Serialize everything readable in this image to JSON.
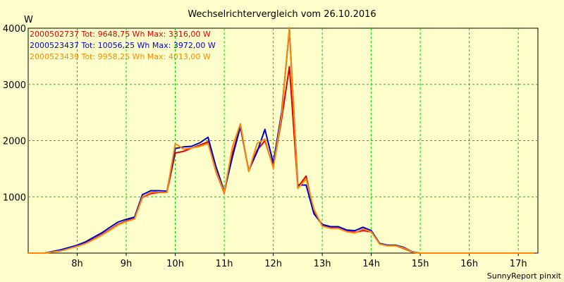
{
  "chart_data": {
    "type": "line",
    "title": "Wechselrichtervergleich vom 26.10.2016",
    "ylabel": "W",
    "xlabel": "",
    "footer": "SunnyReport pinxit",
    "ylim": [
      0,
      4000
    ],
    "xlim": [
      7.0,
      17.4
    ],
    "yticks": [
      1000,
      2000,
      3000,
      4000
    ],
    "xticks": [
      {
        "value": 8,
        "label": "8h"
      },
      {
        "value": 9,
        "label": "9h"
      },
      {
        "value": 10,
        "label": "10h"
      },
      {
        "value": 11,
        "label": "11h"
      },
      {
        "value": 12,
        "label": "12h"
      },
      {
        "value": 13,
        "label": "13h"
      },
      {
        "value": 14,
        "label": "14h"
      },
      {
        "value": 15,
        "label": "15h"
      },
      {
        "value": 16,
        "label": "16h"
      },
      {
        "value": 17,
        "label": "17h"
      }
    ],
    "grid": true,
    "legend_position": "top-left",
    "x": [
      7.0,
      7.33,
      7.67,
      8.0,
      8.17,
      8.33,
      8.5,
      8.67,
      8.83,
      9.0,
      9.17,
      9.33,
      9.5,
      9.67,
      9.83,
      10.0,
      10.17,
      10.33,
      10.5,
      10.67,
      10.83,
      11.0,
      11.17,
      11.33,
      11.5,
      11.67,
      11.83,
      12.0,
      12.17,
      12.33,
      12.5,
      12.67,
      12.83,
      13.0,
      13.17,
      13.33,
      13.5,
      13.67,
      13.83,
      14.0,
      14.17,
      14.33,
      14.5,
      14.67,
      14.83,
      15.0,
      15.17,
      15.33,
      15.5,
      15.67,
      15.83,
      16.0,
      16.17,
      16.33,
      16.5,
      16.67,
      16.83,
      17.0,
      17.17,
      17.33
    ],
    "series": [
      {
        "name": "2000502737",
        "legend": "2000502737 Tot: 9648,75 Wh Max: 3316,00 W",
        "color": "#e00000",
        "values": [
          0,
          0,
          50,
          130,
          180,
          250,
          330,
          420,
          510,
          570,
          620,
          990,
          1060,
          1080,
          1080,
          1780,
          1810,
          1870,
          1920,
          1980,
          1450,
          1070,
          1780,
          2250,
          1460,
          1830,
          2000,
          1530,
          2380,
          3316,
          1170,
          1370,
          730,
          490,
          450,
          450,
          390,
          370,
          400,
          380,
          170,
          140,
          130,
          80,
          20,
          0,
          0,
          0,
          0,
          0,
          0,
          0,
          0,
          0,
          0,
          0,
          0,
          0,
          0,
          0
        ]
      },
      {
        "name": "2000523437",
        "legend": "2000523437 Tot: 10056,25 Wh Max: 3972,00 W",
        "color": "#0000cc",
        "values": [
          0,
          0,
          60,
          140,
          200,
          280,
          360,
          460,
          550,
          600,
          640,
          1040,
          1110,
          1110,
          1100,
          1860,
          1890,
          1900,
          1960,
          2060,
          1540,
          1100,
          1720,
          2250,
          1470,
          1800,
          2200,
          1600,
          2500,
          3972,
          1210,
          1210,
          700,
          510,
          470,
          470,
          410,
          400,
          460,
          400,
          170,
          140,
          140,
          100,
          25,
          0,
          0,
          0,
          0,
          0,
          0,
          0,
          0,
          0,
          0,
          0,
          0,
          0,
          0,
          0
        ]
      },
      {
        "name": "2000523439",
        "legend": "2000523439 Tot: 9958,25 Wh Max: 4013,00 W",
        "color": "#ff8800",
        "values": [
          0,
          0,
          40,
          120,
          170,
          240,
          320,
          410,
          500,
          560,
          610,
          1000,
          1080,
          1090,
          1080,
          1950,
          1850,
          1870,
          1900,
          1950,
          1460,
          1080,
          1900,
          2300,
          1450,
          1950,
          2030,
          1510,
          2450,
          4013,
          1150,
          1320,
          780,
          480,
          440,
          440,
          380,
          360,
          430,
          380,
          160,
          130,
          130,
          90,
          20,
          0,
          0,
          0,
          0,
          0,
          0,
          0,
          0,
          0,
          0,
          0,
          0,
          0,
          0,
          0
        ]
      }
    ]
  }
}
